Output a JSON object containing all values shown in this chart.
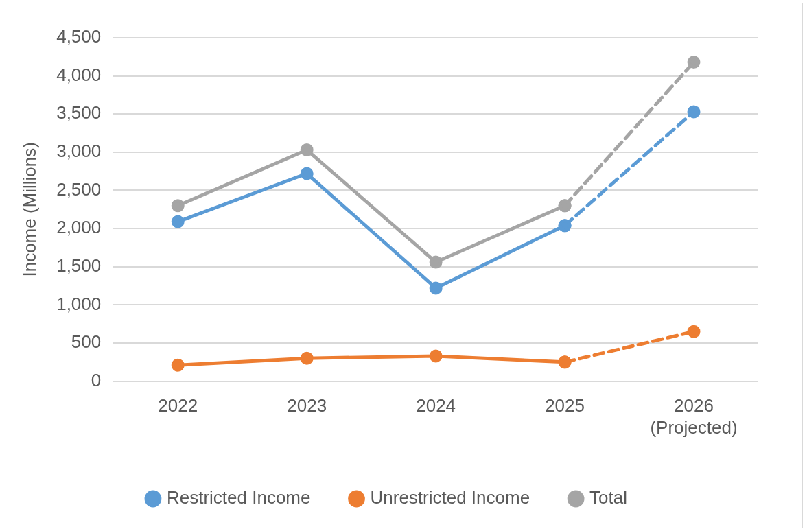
{
  "chart_data": {
    "type": "line",
    "ylabel": "Income (Millions)",
    "categories": [
      "2022",
      "2023",
      "2024",
      "2025",
      "2026\n(Projected)"
    ],
    "ylim": [
      0,
      4500
    ],
    "yticks": [
      {
        "value": 0,
        "label": "0"
      },
      {
        "value": 500,
        "label": "500"
      },
      {
        "value": 1000,
        "label": "1,000"
      },
      {
        "value": 1500,
        "label": "1,500"
      },
      {
        "value": 2000,
        "label": "2,000"
      },
      {
        "value": 2500,
        "label": "2,500"
      },
      {
        "value": 3000,
        "label": "3,000"
      },
      {
        "value": 3500,
        "label": "3,500"
      },
      {
        "value": 4000,
        "label": "4,000"
      },
      {
        "value": 4500,
        "label": "4,500"
      }
    ],
    "grid": "y",
    "legend": "bottom",
    "marker": "circle",
    "series": [
      {
        "name": "Restricted Income",
        "color": "#5b9bd5",
        "line_style": "solid",
        "values": [
          2090,
          2720,
          1220,
          2040,
          null
        ]
      },
      {
        "name": "Unrestricted Income",
        "color": "#ed7d31",
        "line_style": "solid",
        "values": [
          210,
          300,
          330,
          250,
          null
        ]
      },
      {
        "name": "Total",
        "color": "#a5a5a5",
        "line_style": "solid",
        "values": [
          2300,
          3030,
          1560,
          2300,
          null
        ]
      },
      {
        "color": "#5b9bd5",
        "line_style": "dashed",
        "values": [
          null,
          null,
          null,
          2040,
          3530
        ]
      },
      {
        "color": "#ed7d31",
        "line_style": "dashed",
        "values": [
          null,
          null,
          null,
          250,
          650
        ]
      },
      {
        "color": "#a5a5a5",
        "line_style": "dashed",
        "values": [
          null,
          null,
          null,
          2300,
          4180
        ]
      }
    ]
  }
}
